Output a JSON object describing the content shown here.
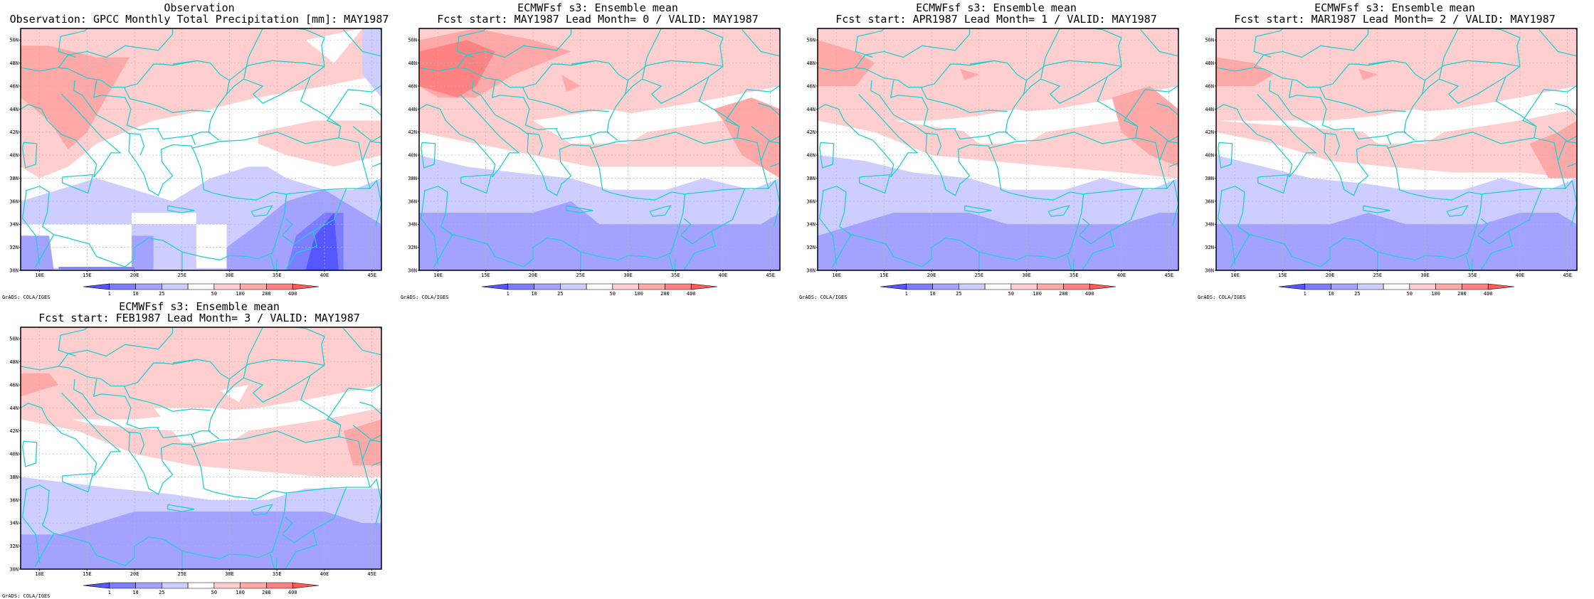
{
  "colors": {
    "coast": "#1fcfcf",
    "frame": "#000000",
    "grid": "#b8b8b8",
    "levels": [
      "#5757ff",
      "#7d7dff",
      "#a3a3ff",
      "#cdcdff",
      "#ffffff",
      "#ffcfcf",
      "#ffa8a8",
      "#ff8282",
      "#ff5a5a"
    ]
  },
  "map": {
    "lon_labels": [
      "10E",
      "15E",
      "20E",
      "25E",
      "30E",
      "35E",
      "40E",
      "45E"
    ],
    "lat_labels": [
      "30N",
      "32N",
      "34N",
      "36N",
      "38N",
      "40N",
      "42N",
      "44N",
      "46N",
      "48N",
      "50N"
    ]
  },
  "colorbar": {
    "labels": [
      "1",
      "10",
      "25",
      "50",
      "100",
      "200",
      "400"
    ]
  },
  "credit": "GrADS: COLA/IGES",
  "panels": [
    {
      "title1": "Observation",
      "title2": "Observation: GPCC Monthly Total Precipitation [mm]: MAY1987"
    },
    {
      "title1": "ECMWFsf s3: Ensemble mean",
      "title2": "Fcst start: MAY1987  Lead Month= 0 / VALID: MAY1987"
    },
    {
      "title1": "ECMWFsf s3: Ensemble mean",
      "title2": "Fcst start: APR1987  Lead Month= 1 / VALID: MAY1987"
    },
    {
      "title1": "ECMWFsf s3: Ensemble mean",
      "title2": "Fcst start: MAR1987  Lead Month= 2 / VALID: MAY1987"
    },
    {
      "title1": "ECMWFsf s3: Ensemble mean",
      "title2": "Fcst start: FEB1987  Lead Month= 3 / VALID: MAY1987"
    }
  ]
}
